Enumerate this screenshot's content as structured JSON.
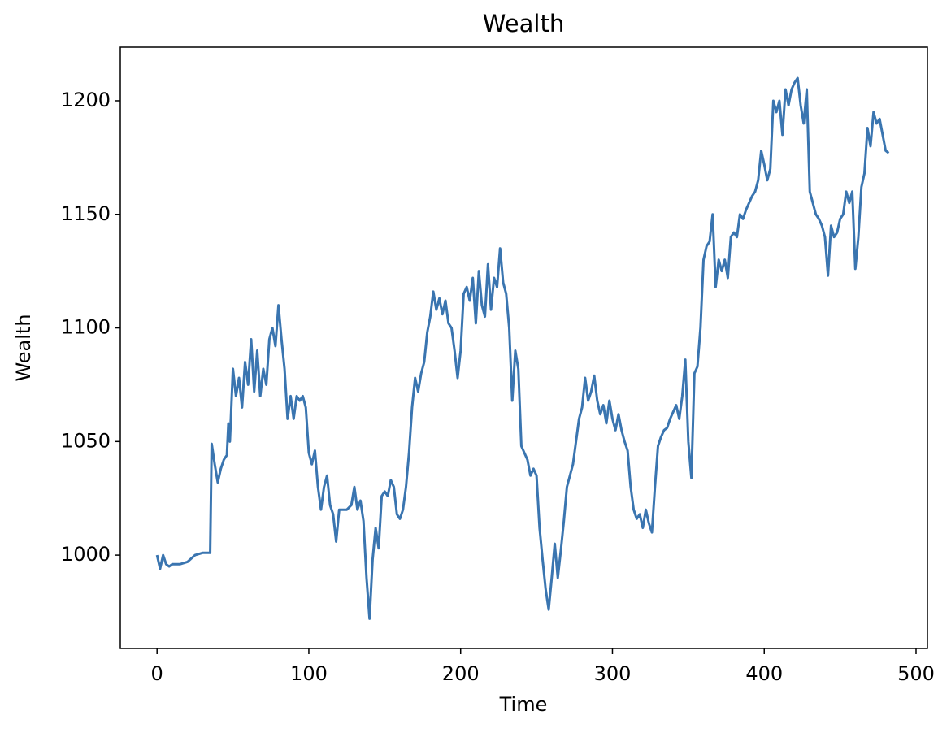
{
  "chart_data": {
    "type": "line",
    "title": "Wealth",
    "x_label": "Time",
    "y_label": "Wealth",
    "color": "#3a75b0",
    "x": [
      0,
      2,
      4,
      6,
      8,
      10,
      15,
      20,
      25,
      30,
      35,
      36,
      38,
      40,
      42,
      44,
      46,
      47,
      48,
      50,
      52,
      54,
      56,
      58,
      60,
      62,
      64,
      66,
      68,
      70,
      72,
      74,
      76,
      78,
      80,
      82,
      84,
      86,
      88,
      90,
      92,
      94,
      96,
      98,
      100,
      102,
      104,
      106,
      108,
      110,
      112,
      114,
      116,
      118,
      120,
      125,
      128,
      130,
      132,
      134,
      136,
      138,
      140,
      142,
      144,
      146,
      148,
      150,
      152,
      154,
      156,
      158,
      160,
      162,
      164,
      166,
      168,
      170,
      172,
      174,
      176,
      178,
      180,
      182,
      184,
      186,
      188,
      190,
      192,
      194,
      196,
      198,
      200,
      202,
      204,
      206,
      208,
      210,
      212,
      214,
      216,
      218,
      220,
      222,
      224,
      226,
      228,
      230,
      232,
      234,
      236,
      238,
      240,
      242,
      244,
      246,
      248,
      250,
      252,
      254,
      256,
      258,
      260,
      262,
      264,
      266,
      268,
      270,
      272,
      274,
      276,
      278,
      280,
      282,
      284,
      286,
      288,
      290,
      292,
      294,
      296,
      298,
      300,
      302,
      304,
      306,
      308,
      310,
      312,
      314,
      316,
      318,
      320,
      322,
      324,
      326,
      328,
      330,
      332,
      334,
      336,
      338,
      340,
      342,
      344,
      346,
      348,
      350,
      352,
      354,
      356,
      358,
      360,
      362,
      364,
      366,
      368,
      370,
      372,
      374,
      376,
      378,
      380,
      382,
      384,
      386,
      388,
      390,
      392,
      394,
      396,
      398,
      400,
      402,
      404,
      406,
      408,
      410,
      412,
      414,
      416,
      418,
      420,
      422,
      424,
      426,
      428,
      430,
      432,
      434,
      436,
      438,
      440,
      442,
      444,
      446,
      448,
      450,
      452,
      454,
      456,
      458,
      460,
      462,
      464,
      466,
      468,
      470,
      472,
      474,
      476,
      478,
      480,
      482
    ],
    "values": [
      1000,
      994,
      1000,
      996,
      995,
      996,
      996,
      997,
      1000,
      1001,
      1001,
      1049,
      1040,
      1032,
      1038,
      1042,
      1044,
      1058,
      1050,
      1082,
      1070,
      1078,
      1065,
      1085,
      1075,
      1095,
      1072,
      1090,
      1070,
      1082,
      1075,
      1095,
      1100,
      1092,
      1110,
      1095,
      1082,
      1060,
      1070,
      1060,
      1070,
      1068,
      1070,
      1065,
      1045,
      1040,
      1046,
      1030,
      1020,
      1030,
      1035,
      1022,
      1018,
      1006,
      1020,
      1020,
      1022,
      1030,
      1020,
      1024,
      1015,
      990,
      972,
      998,
      1012,
      1003,
      1026,
      1028,
      1026,
      1033,
      1030,
      1018,
      1016,
      1020,
      1030,
      1045,
      1065,
      1078,
      1072,
      1080,
      1085,
      1098,
      1105,
      1116,
      1108,
      1113,
      1106,
      1112,
      1102,
      1100,
      1090,
      1078,
      1090,
      1115,
      1118,
      1112,
      1122,
      1102,
      1125,
      1110,
      1105,
      1128,
      1108,
      1122,
      1118,
      1135,
      1120,
      1115,
      1100,
      1068,
      1090,
      1082,
      1048,
      1045,
      1042,
      1035,
      1038,
      1035,
      1012,
      998,
      985,
      976,
      990,
      1005,
      990,
      1002,
      1015,
      1030,
      1035,
      1040,
      1050,
      1060,
      1065,
      1078,
      1068,
      1072,
      1079,
      1068,
      1062,
      1066,
      1058,
      1068,
      1060,
      1055,
      1062,
      1055,
      1050,
      1046,
      1030,
      1020,
      1016,
      1018,
      1012,
      1020,
      1014,
      1010,
      1030,
      1048,
      1052,
      1055,
      1056,
      1060,
      1063,
      1066,
      1060,
      1070,
      1086,
      1050,
      1034,
      1080,
      1083,
      1100,
      1130,
      1136,
      1138,
      1150,
      1118,
      1130,
      1125,
      1130,
      1122,
      1140,
      1142,
      1140,
      1150,
      1148,
      1152,
      1155,
      1158,
      1160,
      1165,
      1178,
      1172,
      1165,
      1170,
      1200,
      1195,
      1200,
      1185,
      1205,
      1198,
      1205,
      1208,
      1210,
      1198,
      1190,
      1205,
      1160,
      1155,
      1150,
      1148,
      1145,
      1140,
      1123,
      1145,
      1140,
      1142,
      1148,
      1150,
      1160,
      1155,
      1160,
      1126,
      1140,
      1162,
      1168,
      1188,
      1180,
      1195,
      1190,
      1192,
      1185,
      1178,
      1177
    ],
    "xlim": [
      -24.2,
      507.5
    ],
    "ylim": [
      958.9,
      1223.6
    ],
    "xticks": [
      0,
      100,
      200,
      300,
      400,
      500
    ],
    "yticks": [
      1000,
      1050,
      1100,
      1150,
      1200
    ]
  }
}
